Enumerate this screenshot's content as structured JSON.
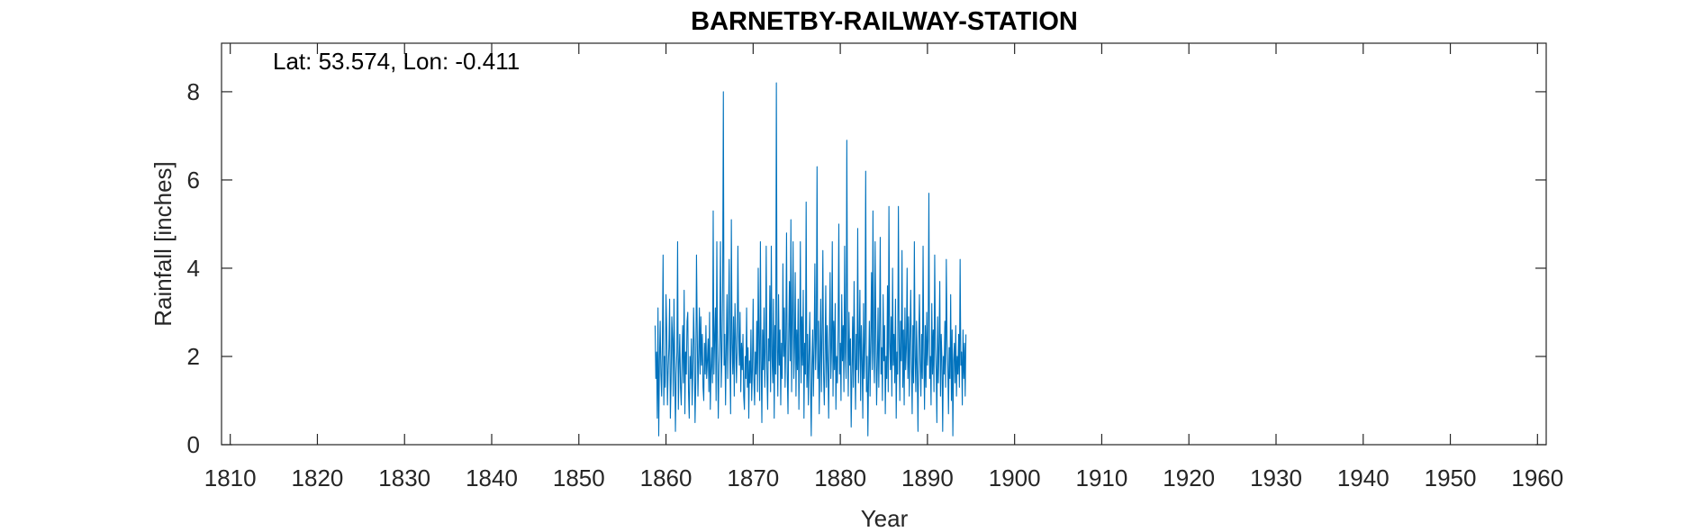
{
  "chart_data": {
    "type": "line",
    "title": "BARNETBY-RAILWAY-STATION",
    "annotation": "Lat: 53.574, Lon: -0.411",
    "xlabel": "Year",
    "ylabel": "Rainfall [inches]",
    "xlim": [
      1809,
      1961
    ],
    "ylim": [
      0,
      9.1
    ],
    "xticks": [
      "1810",
      "1820",
      "1830",
      "1840",
      "1850",
      "1860",
      "1870",
      "1880",
      "1890",
      "1900",
      "1910",
      "1920",
      "1930",
      "1940",
      "1950",
      "1960"
    ],
    "yticks": [
      "0",
      "2",
      "4",
      "6",
      "8"
    ],
    "grid": false,
    "series_color": "#0072BD",
    "series": [
      {
        "x_start": 1858.75,
        "x_step": 0.08333,
        "values": [
          2.7,
          1.5,
          2.1,
          0.6,
          3.1,
          0.2,
          1.9,
          2.8,
          1.6,
          1.1,
          2.3,
          4.3,
          0.9,
          2.0,
          1.3,
          3.4,
          2.6,
          0.9,
          1.7,
          2.2,
          3.3,
          0.6,
          1.4,
          2.9,
          2.4,
          1.1,
          3.3,
          1.9,
          0.3,
          1.6,
          2.1,
          4.6,
          0.8,
          1.8,
          2.5,
          1.3,
          0.9,
          1.9,
          2.7,
          1.4,
          3.5,
          0.7,
          2.1,
          1.6,
          2.8,
          3.0,
          1.2,
          0.6,
          2.0,
          1.5,
          2.4,
          0.9,
          1.7,
          3.1,
          2.2,
          0.5,
          1.4,
          4.3,
          2.6,
          1.1,
          2.0,
          3.1,
          1.6,
          2.9,
          1.8,
          2.5,
          1.3,
          1.0,
          2.3,
          1.6,
          2.7,
          1.5,
          1.9,
          2.4,
          1.2,
          3.0,
          0.8,
          1.7,
          2.2,
          1.4,
          5.3,
          1.6,
          2.4,
          3.1,
          1.0,
          4.6,
          2.0,
          0.6,
          1.8,
          2.5,
          4.6,
          1.3,
          2.0,
          3.6,
          8.0,
          1.8,
          2.5,
          0.9,
          2.2,
          3.4,
          1.5,
          2.8,
          4.2,
          1.9,
          0.7,
          5.1,
          2.3,
          1.6,
          2.9,
          1.1,
          3.2,
          2.4,
          1.4,
          2.1,
          4.5,
          2.6,
          1.8,
          3.0,
          1.2,
          2.3,
          1.7,
          2.5,
          1.1,
          0.8,
          2.0,
          1.5,
          3.1,
          1.3,
          2.2,
          0.6,
          1.9,
          1.4,
          2.6,
          1.0,
          1.7,
          3.3,
          1.5,
          0.9,
          2.1,
          1.6,
          2.8,
          1.2,
          4.0,
          2.3,
          1.0,
          4.6,
          1.9,
          0.5,
          2.6,
          1.7,
          3.1,
          1.3,
          2.2,
          4.5,
          1.6,
          0.8,
          2.4,
          1.9,
          3.6,
          1.2,
          4.5,
          2.0,
          1.4,
          3.3,
          0.6,
          2.7,
          1.6,
          8.2,
          2.2,
          1.1,
          3.4,
          1.8,
          2.6,
          0.9,
          2.3,
          1.5,
          4.1,
          2.0,
          3.1,
          1.3,
          2.4,
          4.8,
          1.6,
          0.7,
          2.5,
          3.7,
          1.9,
          5.1,
          1.2,
          2.8,
          4.6,
          1.5,
          2.2,
          3.9,
          1.1,
          2.6,
          1.7,
          3.3,
          0.8,
          2.1,
          4.6,
          1.4,
          2.9,
          1.8,
          3.5,
          0.6,
          2.3,
          1.6,
          5.5,
          1.3,
          2.5,
          0.9,
          2.0,
          3.0,
          1.4,
          0.2,
          1.8,
          2.6,
          1.1,
          2.2,
          4.1,
          1.7,
          2.4,
          6.3,
          1.5,
          2.8,
          0.7,
          1.9,
          3.3,
          1.2,
          2.5,
          4.4,
          1.6,
          0.9,
          2.1,
          3.6,
          1.3,
          2.7,
          1.8,
          0.6,
          2.4,
          3.9,
          1.5,
          2.2,
          4.6,
          1.1,
          2.8,
          1.7,
          3.2,
          0.8,
          2.0,
          1.4,
          2.6,
          5.0,
          1.6,
          2.3,
          1.0,
          3.4,
          1.9,
          2.7,
          1.2,
          4.5,
          2.1,
          1.5,
          6.9,
          2.6,
          1.1,
          3.0,
          1.8,
          2.4,
          0.4,
          1.6,
          2.9,
          1.3,
          3.7,
          2.0,
          0.8,
          2.5,
          1.7,
          4.9,
          1.4,
          2.2,
          3.5,
          1.0,
          2.7,
          1.9,
          0.6,
          3.2,
          1.5,
          2.3,
          6.2,
          1.2,
          2.0,
          0.2,
          1.6,
          2.8,
          1.1,
          2.4,
          3.9,
          1.7,
          5.3,
          2.1,
          1.4,
          4.6,
          2.6,
          0.9,
          1.8,
          3.1,
          1.3,
          2.5,
          4.7,
          1.6,
          2.2,
          1.0,
          3.4,
          1.9,
          2.7,
          0.7,
          2.0,
          1.5,
          3.6,
          1.2,
          5.4,
          2.3,
          1.7,
          2.9,
          1.1,
          4.0,
          1.8,
          2.5,
          1.4,
          3.3,
          0.6,
          2.1,
          1.6,
          5.4,
          2.4,
          1.0,
          2.8,
          1.9,
          4.4,
          1.3,
          2.6,
          0.9,
          3.1,
          1.7,
          2.2,
          4.0,
          1.5,
          2.9,
          1.1,
          2.4,
          3.5,
          1.8,
          0.7,
          2.7,
          1.4,
          4.6,
          2.0,
          1.2,
          2.8,
          1.6,
          0.3,
          2.3,
          3.4,
          1.9,
          1.1,
          2.5,
          1.5,
          4.5,
          2.1,
          0.8,
          2.7,
          1.3,
          3.0,
          1.8,
          2.4,
          5.7,
          1.5,
          2.0,
          0.9,
          3.2,
          1.6,
          2.6,
          1.2,
          4.3,
          2.2,
          1.7,
          0.5,
          2.9,
          1.4,
          2.3,
          3.7,
          1.1,
          2.5,
          1.9,
          0.3,
          2.0,
          1.6,
          2.8,
          1.3,
          4.2,
          2.4,
          1.8,
          0.7,
          2.2,
          1.5,
          3.4,
          1.0,
          2.6,
          0.2,
          1.9,
          2.3,
          1.4,
          2.7,
          1.1,
          2.0,
          1.6,
          2.5,
          1.3,
          4.2,
          1.8,
          2.1,
          0.9,
          2.6,
          1.5,
          2.3,
          1.1,
          2.5
        ]
      }
    ]
  }
}
